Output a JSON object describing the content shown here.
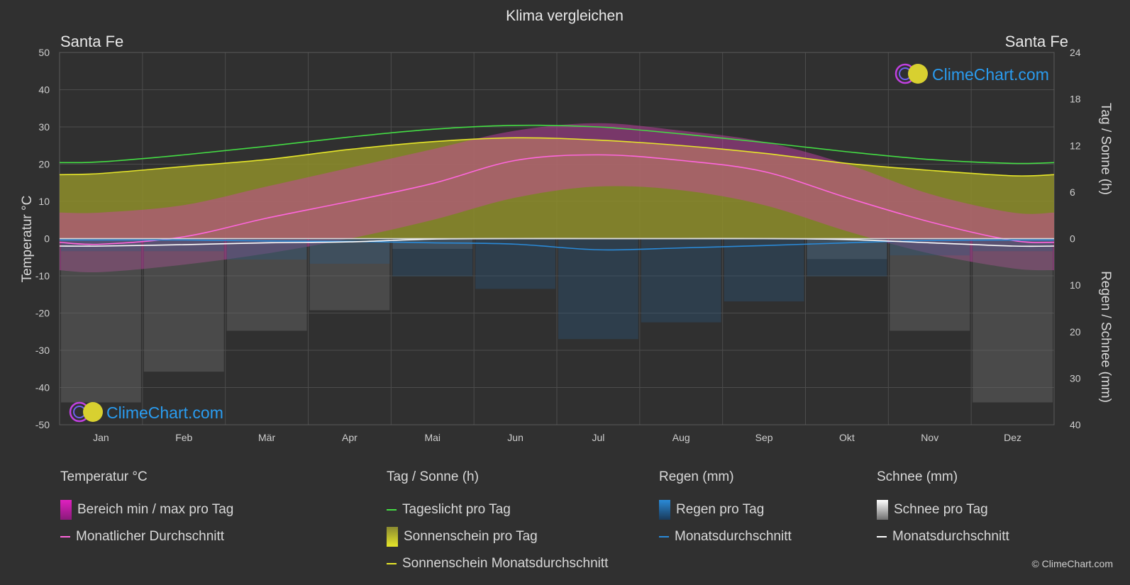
{
  "title": "Klima vergleichen",
  "location_left": "Santa Fe",
  "location_right": "Santa Fe",
  "axis": {
    "left_label": "Temperatur °C",
    "right_top_label": "Tag / Sonne (h)",
    "right_bottom_label": "Regen / Schnee (mm)"
  },
  "brand": {
    "name": "ClimeChart.com",
    "copyright": "© ClimeChart.com"
  },
  "colors": {
    "background": "#303030",
    "daylight": "#44dd44",
    "sunshine_avg": "#e6e62a",
    "sunshine_fill": "#a8a832",
    "temp_avg": "#ff66dd",
    "temp_range": "#e020c0",
    "rain": "#2a8ad8",
    "snow": "#ffffff",
    "brand_blue": "#2a9cf0"
  },
  "legend": {
    "groups": [
      {
        "header": "Temperatur °C",
        "items": [
          {
            "label": "Bereich min / max pro Tag",
            "kind": "box",
            "color": "#e020c0"
          },
          {
            "label": "Monatlicher Durchschnitt",
            "kind": "line",
            "color": "#ff66dd"
          }
        ]
      },
      {
        "header": "Tag / Sonne (h)",
        "items": [
          {
            "label": "Tageslicht pro Tag",
            "kind": "line",
            "color": "#44dd44"
          },
          {
            "label": "Sonnenschein pro Tag",
            "kind": "box",
            "color": "#d8d840"
          },
          {
            "label": "Sonnenschein Monatsdurchschnitt",
            "kind": "line",
            "color": "#e6e62a"
          }
        ]
      },
      {
        "header": "Regen (mm)",
        "items": [
          {
            "label": "Regen pro Tag",
            "kind": "box",
            "color": "#2a8ad8"
          },
          {
            "label": "Monatsdurchschnitt",
            "kind": "line",
            "color": "#2a8ad8"
          }
        ]
      },
      {
        "header": "Schnee (mm)",
        "items": [
          {
            "label": "Schnee pro Tag",
            "kind": "box",
            "color": "#e0e0e0"
          },
          {
            "label": "Monatsdurchschnitt",
            "kind": "line",
            "color": "#ffffff"
          }
        ]
      }
    ]
  },
  "chart_data": {
    "type": "line",
    "title": "Klima vergleichen",
    "categories": [
      "Jan",
      "Feb",
      "Mär",
      "Apr",
      "Mai",
      "Jun",
      "Jul",
      "Aug",
      "Sep",
      "Okt",
      "Nov",
      "Dez"
    ],
    "left_axis": {
      "label": "Temperatur °C",
      "ylim": [
        -50,
        50
      ],
      "ticks": [
        50,
        40,
        30,
        20,
        10,
        0,
        -10,
        -20,
        -30,
        -40,
        -50
      ]
    },
    "right_axis_top": {
      "label": "Tag / Sonne (h)",
      "ylim": [
        0,
        24
      ],
      "ticks": [
        24,
        18,
        12,
        6,
        0
      ]
    },
    "right_axis_bottom": {
      "label": "Regen / Schnee (mm)",
      "ylim": [
        0,
        40
      ],
      "ticks": [
        0,
        10,
        20,
        30,
        40
      ]
    },
    "grid": true,
    "series": [
      {
        "name": "Tageslicht pro Tag",
        "axis": "hours",
        "values": [
          9.9,
          10.8,
          11.9,
          13.1,
          14.1,
          14.6,
          14.4,
          13.5,
          12.4,
          11.2,
          10.2,
          9.7
        ]
      },
      {
        "name": "Sonnenschein Monatsdurchschnitt",
        "axis": "hours",
        "values": [
          8.4,
          9.3,
          10.2,
          11.5,
          12.5,
          13.0,
          12.7,
          12.0,
          11.0,
          9.7,
          8.8,
          8.1
        ]
      },
      {
        "name": "Monatlicher Durchschnitt",
        "axis": "temperature",
        "values": [
          -1.5,
          0.5,
          5.5,
          10,
          14.8,
          21,
          22.5,
          21,
          18,
          11,
          4.5,
          -0.5
        ]
      },
      {
        "name": "Regen Monatsdurchschnitt",
        "axis": "precipitation",
        "values": [
          0.3,
          0.3,
          0.5,
          0.6,
          0.9,
          1.2,
          2.4,
          2.0,
          1.5,
          0.9,
          0.4,
          0.3
        ]
      },
      {
        "name": "Schnee Monatsdurchschnitt",
        "axis": "precipitation",
        "values": [
          1.6,
          1.3,
          0.9,
          0.7,
          0.1,
          0,
          0,
          0,
          0,
          0.2,
          0.9,
          1.6
        ]
      }
    ],
    "temperature_range_daily": {
      "min": [
        -9,
        -7,
        -4,
        0,
        5,
        11,
        14,
        13,
        9,
        2,
        -4,
        -8
      ],
      "max": [
        7,
        9,
        14,
        19,
        24,
        29,
        31,
        29,
        26,
        20,
        12,
        7
      ]
    }
  }
}
